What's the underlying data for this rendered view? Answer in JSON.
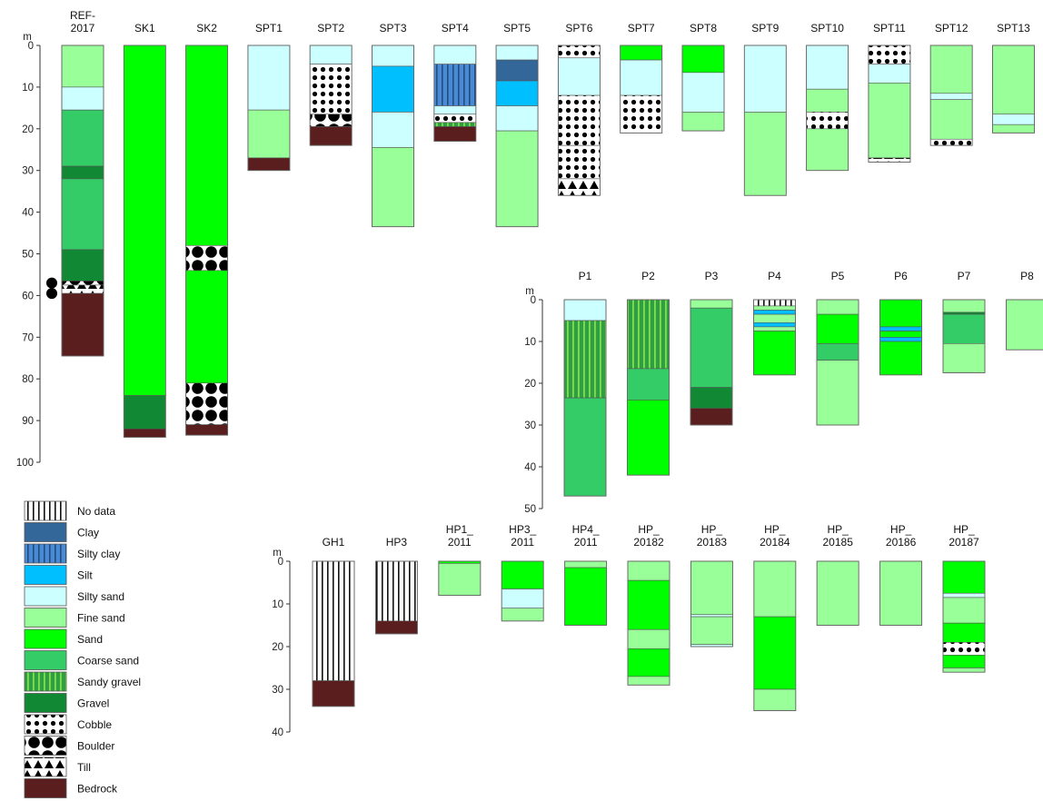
{
  "unit_label": "m",
  "colors": {
    "no_data": "#ffffff",
    "clay": "#336699",
    "silty_clay": "#4a8ad4",
    "silt": "#00bfff",
    "silty_sand": "#ccffff",
    "fine_sand": "#99ff99",
    "sand": "#00ff00",
    "coarse_sand": "#33cc66",
    "sandy_gravel": "#2f9f3f",
    "gravel": "#118833",
    "cobble": "#ffffff",
    "boulder": "#ffffff",
    "till": "#ffffff",
    "bedrock": "#5a1e1e"
  },
  "legend": [
    {
      "key": "no_data",
      "label": "No data"
    },
    {
      "key": "clay",
      "label": "Clay"
    },
    {
      "key": "silty_clay",
      "label": "Silty clay"
    },
    {
      "key": "silt",
      "label": "Silt"
    },
    {
      "key": "silty_sand",
      "label": "Silty sand"
    },
    {
      "key": "fine_sand",
      "label": "Fine sand"
    },
    {
      "key": "sand",
      "label": "Sand"
    },
    {
      "key": "coarse_sand",
      "label": "Coarse sand"
    },
    {
      "key": "sandy_gravel",
      "label": "Sandy gravel"
    },
    {
      "key": "gravel",
      "label": "Gravel"
    },
    {
      "key": "cobble",
      "label": "Cobble"
    },
    {
      "key": "boulder",
      "label": "Boulder"
    },
    {
      "key": "till",
      "label": "Till"
    },
    {
      "key": "bedrock",
      "label": "Bedrock"
    }
  ],
  "groups": [
    {
      "id": "group-top",
      "depth_max": 100,
      "ticks": [
        0,
        10,
        20,
        30,
        40,
        50,
        60,
        70,
        80,
        90,
        100
      ],
      "logs": [
        {
          "name": "REF-\n2017",
          "layers": [
            {
              "from": 0,
              "to": 10,
              "type": "fine_sand"
            },
            {
              "from": 10,
              "to": 15.5,
              "type": "silty_sand"
            },
            {
              "from": 15.5,
              "to": 29,
              "type": "coarse_sand"
            },
            {
              "from": 29,
              "to": 32,
              "type": "gravel"
            },
            {
              "from": 32,
              "to": 49,
              "type": "coarse_sand"
            },
            {
              "from": 49,
              "to": 56.5,
              "type": "gravel"
            },
            {
              "from": 56.5,
              "to": 57.5,
              "type": "boulder"
            },
            {
              "from": 57.5,
              "to": 59.5,
              "type": "till"
            },
            {
              "from": 59.5,
              "to": 74.5,
              "type": "bedrock"
            }
          ]
        },
        {
          "name": "SK1",
          "layers": [
            {
              "from": 0,
              "to": 84,
              "type": "sand"
            },
            {
              "from": 84,
              "to": 92,
              "type": "gravel"
            },
            {
              "from": 92,
              "to": 94,
              "type": "bedrock"
            }
          ]
        },
        {
          "name": "SK2",
          "layers": [
            {
              "from": 0,
              "to": 48,
              "type": "sand"
            },
            {
              "from": 48,
              "to": 54,
              "type": "boulder"
            },
            {
              "from": 54,
              "to": 81,
              "type": "sand"
            },
            {
              "from": 81,
              "to": 91,
              "type": "boulder"
            },
            {
              "from": 91,
              "to": 93.5,
              "type": "bedrock"
            }
          ]
        },
        {
          "name": "SPT1",
          "layers": [
            {
              "from": 0,
              "to": 15.5,
              "type": "silty_sand"
            },
            {
              "from": 15.5,
              "to": 27,
              "type": "fine_sand"
            },
            {
              "from": 27,
              "to": 30,
              "type": "bedrock"
            }
          ]
        },
        {
          "name": "SPT2",
          "layers": [
            {
              "from": 0,
              "to": 4.5,
              "type": "silty_sand"
            },
            {
              "from": 4.5,
              "to": 16.5,
              "type": "cobble"
            },
            {
              "from": 16.5,
              "to": 19.5,
              "type": "boulder"
            },
            {
              "from": 19.5,
              "to": 24,
              "type": "bedrock"
            }
          ]
        },
        {
          "name": "SPT3",
          "layers": [
            {
              "from": 0,
              "to": 5,
              "type": "silty_sand"
            },
            {
              "from": 5,
              "to": 16,
              "type": "silt"
            },
            {
              "from": 16,
              "to": 24.5,
              "type": "silty_sand"
            },
            {
              "from": 24.5,
              "to": 43.5,
              "type": "fine_sand"
            }
          ]
        },
        {
          "name": "SPT4",
          "layers": [
            {
              "from": 0,
              "to": 4.5,
              "type": "silty_sand"
            },
            {
              "from": 4.5,
              "to": 14.5,
              "type": "silty_clay"
            },
            {
              "from": 14.5,
              "to": 16.5,
              "type": "silty_sand"
            },
            {
              "from": 16.5,
              "to": 18.5,
              "type": "cobble"
            },
            {
              "from": 18.5,
              "to": 19.5,
              "type": "sandy_gravel"
            },
            {
              "from": 19.5,
              "to": 23,
              "type": "bedrock"
            }
          ]
        },
        {
          "name": "SPT5",
          "layers": [
            {
              "from": 0,
              "to": 3.5,
              "type": "silty_sand"
            },
            {
              "from": 3.5,
              "to": 8.5,
              "type": "clay"
            },
            {
              "from": 8.5,
              "to": 14.5,
              "type": "silt"
            },
            {
              "from": 14.5,
              "to": 20.5,
              "type": "silty_sand"
            },
            {
              "from": 20.5,
              "to": 43.5,
              "type": "fine_sand"
            }
          ]
        },
        {
          "name": "SPT6",
          "layers": [
            {
              "from": 0,
              "to": 3,
              "type": "cobble"
            },
            {
              "from": 3,
              "to": 12,
              "type": "silty_sand"
            },
            {
              "from": 12,
              "to": 24,
              "type": "cobble"
            },
            {
              "from": 24,
              "to": 32,
              "type": "cobble"
            },
            {
              "from": 32,
              "to": 36,
              "type": "till"
            }
          ]
        },
        {
          "name": "SPT7",
          "layers": [
            {
              "from": 0,
              "to": 3.5,
              "type": "sand"
            },
            {
              "from": 3.5,
              "to": 12,
              "type": "silty_sand"
            },
            {
              "from": 12,
              "to": 21,
              "type": "cobble"
            }
          ]
        },
        {
          "name": "SPT8",
          "layers": [
            {
              "from": 0,
              "to": 6.5,
              "type": "sand"
            },
            {
              "from": 6.5,
              "to": 16,
              "type": "silty_sand"
            },
            {
              "from": 16,
              "to": 20.5,
              "type": "fine_sand"
            }
          ]
        },
        {
          "name": "SPT9",
          "layers": [
            {
              "from": 0,
              "to": 16,
              "type": "silty_sand"
            },
            {
              "from": 16,
              "to": 36,
              "type": "fine_sand"
            }
          ]
        },
        {
          "name": "SPT10",
          "layers": [
            {
              "from": 0,
              "to": 10.5,
              "type": "silty_sand"
            },
            {
              "from": 10.5,
              "to": 16,
              "type": "fine_sand"
            },
            {
              "from": 16,
              "to": 20,
              "type": "cobble"
            },
            {
              "from": 20,
              "to": 30,
              "type": "fine_sand"
            }
          ]
        },
        {
          "name": "SPT11",
          "layers": [
            {
              "from": 0,
              "to": 4.5,
              "type": "cobble"
            },
            {
              "from": 4.5,
              "to": 9,
              "type": "silty_sand"
            },
            {
              "from": 9,
              "to": 27,
              "type": "fine_sand"
            },
            {
              "from": 27,
              "to": 28,
              "type": "till"
            }
          ]
        },
        {
          "name": "SPT12",
          "layers": [
            {
              "from": 0,
              "to": 11.5,
              "type": "fine_sand"
            },
            {
              "from": 11.5,
              "to": 13,
              "type": "silty_sand"
            },
            {
              "from": 13,
              "to": 22.5,
              "type": "fine_sand"
            },
            {
              "from": 22.5,
              "to": 24,
              "type": "cobble"
            }
          ]
        },
        {
          "name": "SPT13",
          "layers": [
            {
              "from": 0,
              "to": 16.5,
              "type": "fine_sand"
            },
            {
              "from": 16.5,
              "to": 19,
              "type": "silty_sand"
            },
            {
              "from": 19,
              "to": 21,
              "type": "fine_sand"
            }
          ]
        }
      ]
    },
    {
      "id": "group-p",
      "depth_max": 50,
      "ticks": [
        0,
        10,
        20,
        30,
        40,
        50
      ],
      "logs": [
        {
          "name": "P1",
          "layers": [
            {
              "from": 0,
              "to": 5,
              "type": "silty_sand"
            },
            {
              "from": 5,
              "to": 23.5,
              "type": "sandy_gravel"
            },
            {
              "from": 23.5,
              "to": 47,
              "type": "coarse_sand"
            }
          ]
        },
        {
          "name": "P2",
          "layers": [
            {
              "from": 0,
              "to": 16.5,
              "type": "sandy_gravel"
            },
            {
              "from": 16.5,
              "to": 24,
              "type": "coarse_sand"
            },
            {
              "from": 24,
              "to": 42,
              "type": "sand"
            }
          ]
        },
        {
          "name": "P3",
          "layers": [
            {
              "from": 0,
              "to": 2,
              "type": "fine_sand"
            },
            {
              "from": 2,
              "to": 21,
              "type": "coarse_sand"
            },
            {
              "from": 21,
              "to": 26,
              "type": "gravel"
            },
            {
              "from": 26,
              "to": 30,
              "type": "bedrock"
            }
          ]
        },
        {
          "name": "P4",
          "layers": [
            {
              "from": 0,
              "to": 1.5,
              "type": "no_data"
            },
            {
              "from": 1.5,
              "to": 2.5,
              "type": "fine_sand"
            },
            {
              "from": 2.5,
              "to": 3.5,
              "type": "silt"
            },
            {
              "from": 3.5,
              "to": 5.5,
              "type": "fine_sand"
            },
            {
              "from": 5.5,
              "to": 6.5,
              "type": "silt"
            },
            {
              "from": 6.5,
              "to": 7.5,
              "type": "fine_sand"
            },
            {
              "from": 7.5,
              "to": 18,
              "type": "sand"
            }
          ]
        },
        {
          "name": "P5",
          "layers": [
            {
              "from": 0,
              "to": 3.5,
              "type": "fine_sand"
            },
            {
              "from": 3.5,
              "to": 10.5,
              "type": "sand"
            },
            {
              "from": 10.5,
              "to": 14.5,
              "type": "coarse_sand"
            },
            {
              "from": 14.5,
              "to": 30,
              "type": "fine_sand"
            }
          ]
        },
        {
          "name": "P6",
          "layers": [
            {
              "from": 0,
              "to": 6.5,
              "type": "sand"
            },
            {
              "from": 6.5,
              "to": 7.5,
              "type": "silt"
            },
            {
              "from": 7.5,
              "to": 9,
              "type": "sand"
            },
            {
              "from": 9,
              "to": 10,
              "type": "silt"
            },
            {
              "from": 10,
              "to": 18,
              "type": "sand"
            }
          ]
        },
        {
          "name": "P7",
          "layers": [
            {
              "from": 0,
              "to": 3,
              "type": "fine_sand"
            },
            {
              "from": 3,
              "to": 3.5,
              "type": "gravel"
            },
            {
              "from": 3.5,
              "to": 10.5,
              "type": "coarse_sand"
            },
            {
              "from": 10.5,
              "to": 17.5,
              "type": "fine_sand"
            }
          ]
        },
        {
          "name": "P8",
          "layers": [
            {
              "from": 0,
              "to": 12,
              "type": "fine_sand"
            }
          ]
        }
      ]
    },
    {
      "id": "group-hp",
      "depth_max": 40,
      "ticks": [
        0,
        10,
        20,
        30,
        40
      ],
      "logs": [
        {
          "name": "GH1",
          "layers": [
            {
              "from": 0,
              "to": 28,
              "type": "no_data"
            },
            {
              "from": 28,
              "to": 34,
              "type": "bedrock"
            }
          ]
        },
        {
          "name": "HP3",
          "layers": [
            {
              "from": 0,
              "to": 14,
              "type": "no_data"
            },
            {
              "from": 14,
              "to": 17,
              "type": "bedrock"
            }
          ]
        },
        {
          "name": "HP1_\n2011",
          "layers": [
            {
              "from": 0,
              "to": 0.5,
              "type": "sand"
            },
            {
              "from": 0.5,
              "to": 8,
              "type": "fine_sand"
            }
          ]
        },
        {
          "name": "HP3_\n2011",
          "layers": [
            {
              "from": 0,
              "to": 6.5,
              "type": "sand"
            },
            {
              "from": 6.5,
              "to": 11,
              "type": "silty_sand"
            },
            {
              "from": 11,
              "to": 14,
              "type": "fine_sand"
            }
          ]
        },
        {
          "name": "HP4_\n2011",
          "layers": [
            {
              "from": 0,
              "to": 1.5,
              "type": "fine_sand"
            },
            {
              "from": 1.5,
              "to": 15,
              "type": "sand"
            }
          ]
        },
        {
          "name": "HP_\n20182",
          "layers": [
            {
              "from": 0,
              "to": 4.5,
              "type": "fine_sand"
            },
            {
              "from": 4.5,
              "to": 16,
              "type": "sand"
            },
            {
              "from": 16,
              "to": 20.5,
              "type": "fine_sand"
            },
            {
              "from": 20.5,
              "to": 27,
              "type": "sand"
            },
            {
              "from": 27,
              "to": 29,
              "type": "fine_sand"
            }
          ]
        },
        {
          "name": "HP_\n20183",
          "layers": [
            {
              "from": 0,
              "to": 12.5,
              "type": "fine_sand"
            },
            {
              "from": 12.5,
              "to": 13,
              "type": "silty_sand"
            },
            {
              "from": 13,
              "to": 19.5,
              "type": "fine_sand"
            },
            {
              "from": 19.5,
              "to": 20,
              "type": "silty_sand"
            }
          ]
        },
        {
          "name": "HP_\n20184",
          "layers": [
            {
              "from": 0,
              "to": 13,
              "type": "fine_sand"
            },
            {
              "from": 13,
              "to": 30,
              "type": "sand"
            },
            {
              "from": 30,
              "to": 35,
              "type": "fine_sand"
            }
          ]
        },
        {
          "name": "HP_\n20185",
          "layers": [
            {
              "from": 0,
              "to": 15,
              "type": "fine_sand"
            }
          ]
        },
        {
          "name": "HP_\n20186",
          "layers": [
            {
              "from": 0,
              "to": 15,
              "type": "fine_sand"
            }
          ]
        },
        {
          "name": "HP_\n20187",
          "layers": [
            {
              "from": 0,
              "to": 7.5,
              "type": "sand"
            },
            {
              "from": 7.5,
              "to": 8.5,
              "type": "silty_sand"
            },
            {
              "from": 8.5,
              "to": 14.5,
              "type": "fine_sand"
            },
            {
              "from": 14.5,
              "to": 19,
              "type": "sand"
            },
            {
              "from": 19,
              "to": 22,
              "type": "cobble"
            },
            {
              "from": 22,
              "to": 25,
              "type": "sand"
            },
            {
              "from": 25,
              "to": 26,
              "type": "fine_sand"
            }
          ]
        }
      ]
    }
  ]
}
